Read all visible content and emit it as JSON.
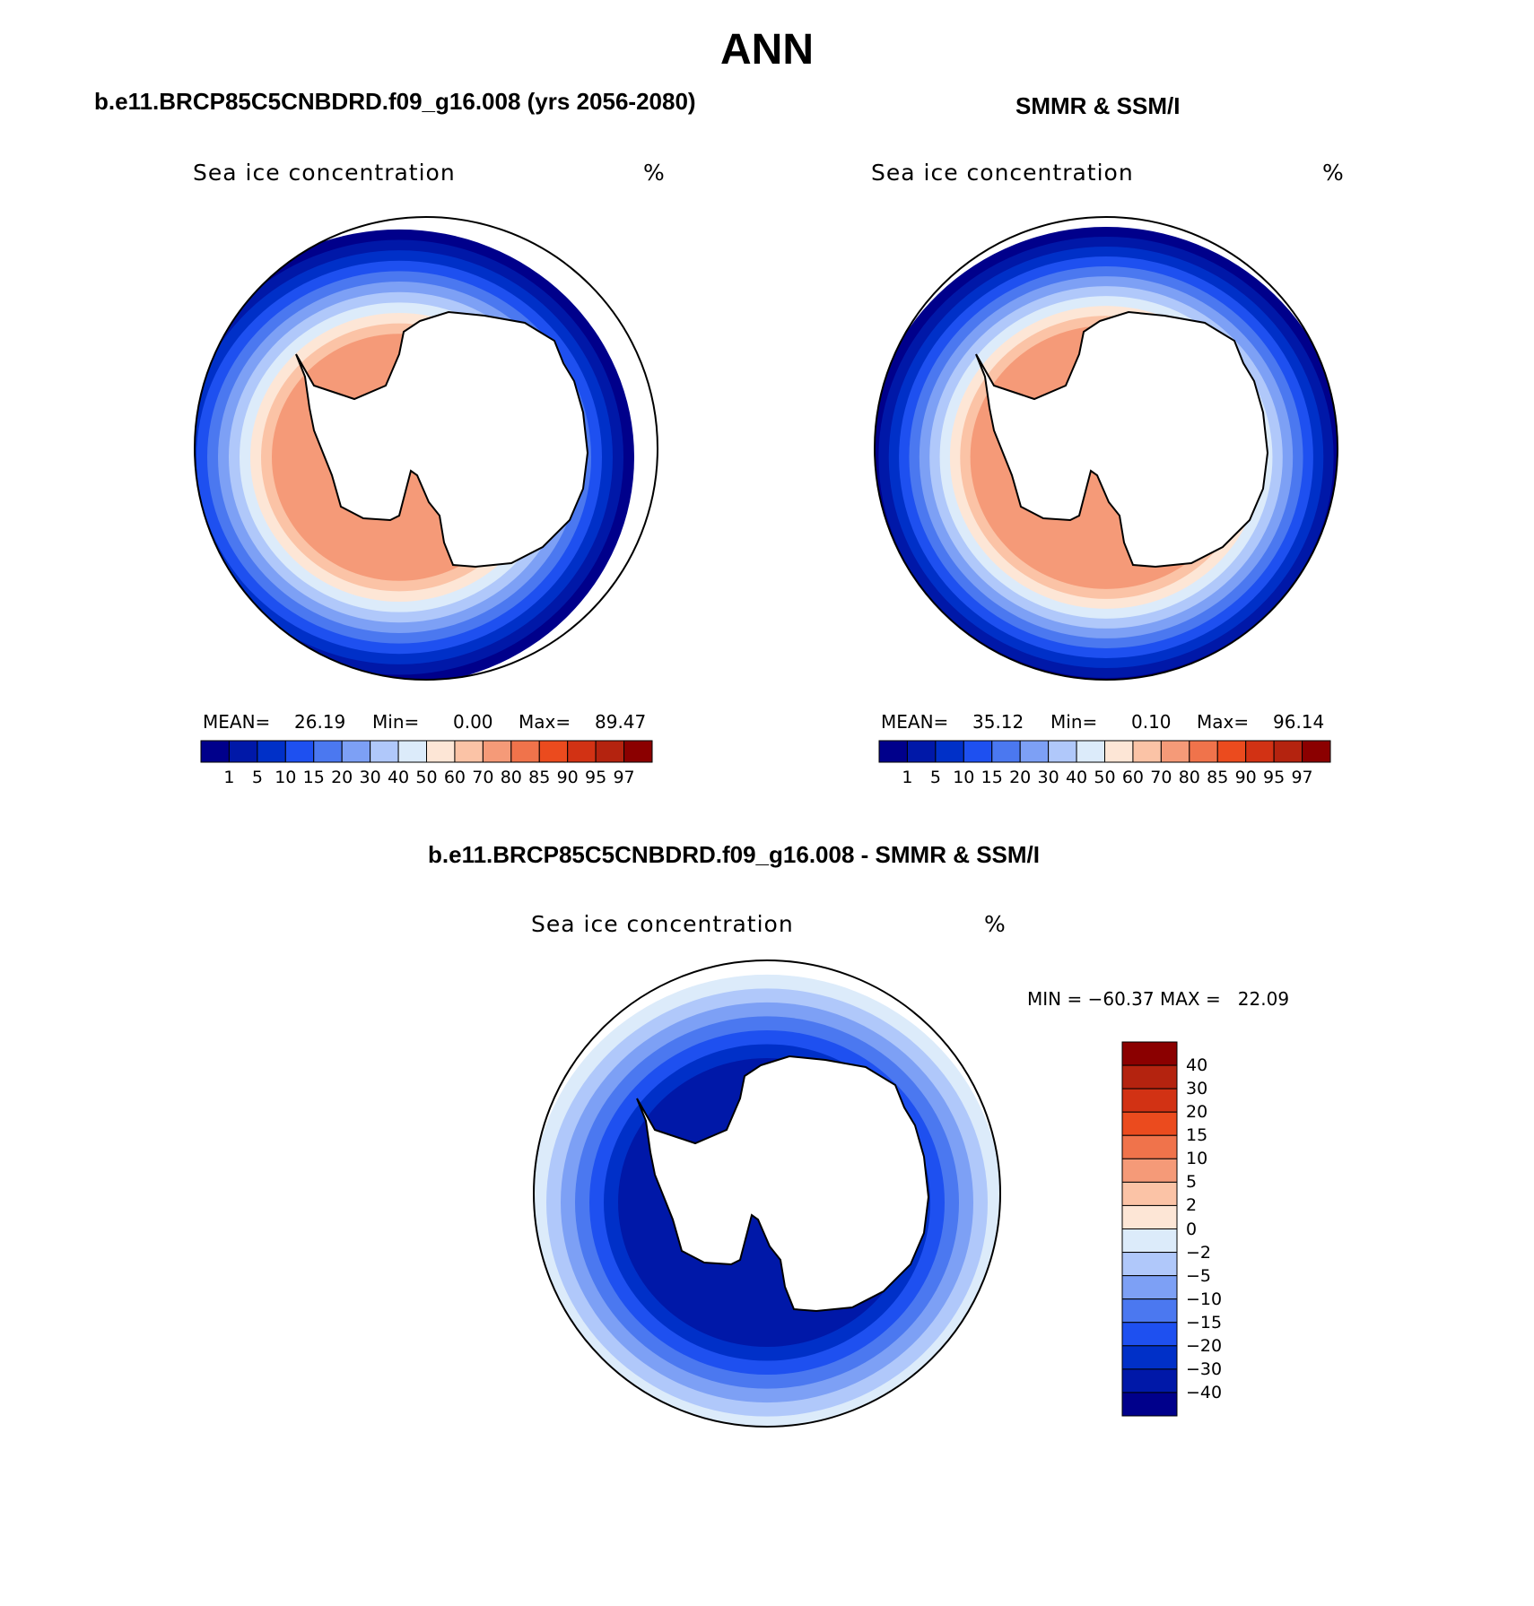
{
  "page_title": "ANN",
  "panels": [
    {
      "id": "model",
      "case_title": "b.e11.BRCP85C5CNBDRD.f09_g16.008 (yrs 2056-2080)",
      "plot_title": "Sea ice concentration",
      "units": "%",
      "stats": {
        "mean_label": "MEAN=",
        "mean": "26.19",
        "min_label": "Min=",
        "min": "0.00",
        "max_label": "Max=",
        "max": "89.47"
      }
    },
    {
      "id": "obs",
      "case_title": "SMMR & SSM/I",
      "plot_title": "Sea ice concentration",
      "units": "%",
      "stats": {
        "mean_label": "MEAN=",
        "mean": "35.12",
        "min_label": "Min=",
        "min": "0.10",
        "max_label": "Max=",
        "max": "96.14"
      }
    },
    {
      "id": "diff",
      "case_title": "b.e11.BRCP85C5CNBDRD.f09_g16.008 - SMMR & SSM/I",
      "plot_title": "Sea ice concentration",
      "units": "%",
      "minmax": "MIN = −60.37 MAX =   22.09"
    }
  ],
  "colorbar_main": {
    "colors": [
      "#00008b",
      "#0018a8",
      "#0030c8",
      "#1e50f0",
      "#4b78f0",
      "#7da0f5",
      "#b0c8fa",
      "#dcebfa",
      "#fde6d6",
      "#fbc3a6",
      "#f59a78",
      "#f0734b",
      "#eb4b1e",
      "#d23214",
      "#b4230f",
      "#8b0000"
    ],
    "labels": [
      "1",
      "5",
      "10",
      "15",
      "20",
      "30",
      "40",
      "50",
      "60",
      "70",
      "80",
      "85",
      "90",
      "95",
      "97"
    ]
  },
  "colorbar_diff": {
    "colors": [
      "#8b0000",
      "#b4230f",
      "#d23214",
      "#eb4b1e",
      "#f0734b",
      "#f59a78",
      "#fbc3a6",
      "#fde6d6",
      "#dcebfa",
      "#b0c8fa",
      "#7da0f5",
      "#4b78f0",
      "#1e50f0",
      "#0030c8",
      "#0018a8",
      "#00008b"
    ],
    "labels": [
      "40",
      "30",
      "20",
      "15",
      "10",
      "5",
      "2",
      "0",
      "−2",
      "−5",
      "−10",
      "−15",
      "−20",
      "−30",
      "−40"
    ]
  },
  "map_fill": {
    "model": [
      "#00008b",
      "#0018a8",
      "#0030c8",
      "#1e50f0",
      "#4b78f0",
      "#7da0f5",
      "#b0c8fa",
      "#dcebfa",
      "#fde6d6",
      "#fbc3a6",
      "#f59a78"
    ],
    "obs": [
      "#00008b",
      "#0018a8",
      "#0030c8",
      "#1e50f0",
      "#4b78f0",
      "#7da0f5",
      "#b0c8fa",
      "#dcebfa",
      "#fde6d6",
      "#fbc3a6",
      "#f59a78"
    ],
    "diff": [
      "#dcebfa",
      "#b0c8fa",
      "#7da0f5",
      "#4b78f0",
      "#1e50f0",
      "#0030c8",
      "#0018a8"
    ]
  }
}
